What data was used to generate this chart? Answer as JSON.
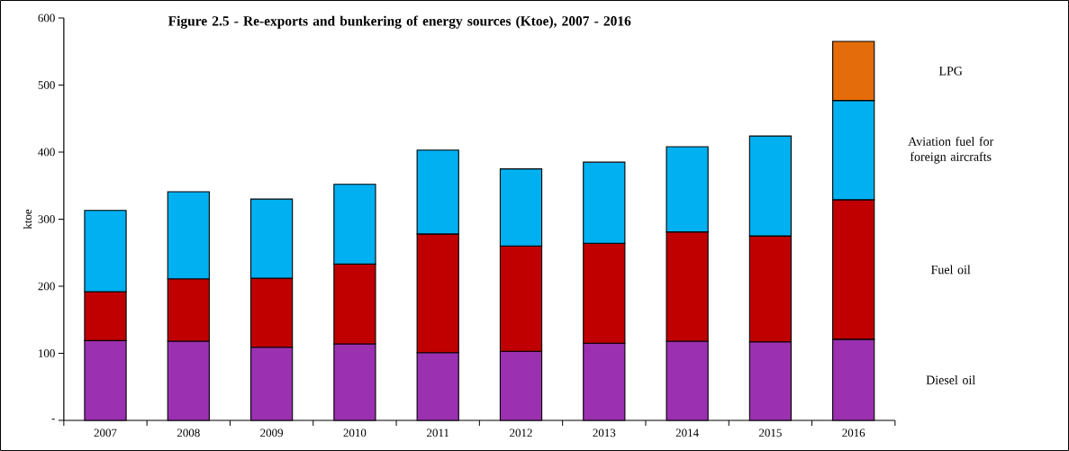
{
  "chart_data": {
    "type": "bar",
    "stacked": true,
    "title": "Figure 2.5 - Re-exports and bunkering of energy sources (Ktoe), 2007 - 2016",
    "ylabel": "ktoe",
    "categories": [
      "2007",
      "2008",
      "2009",
      "2010",
      "2011",
      "2012",
      "2013",
      "2014",
      "2015",
      "2016"
    ],
    "series": [
      {
        "name": "Diesel oil",
        "color": "#9b30b0",
        "values": [
          119,
          118,
          109,
          114,
          101,
          103,
          115,
          118,
          117,
          121
        ]
      },
      {
        "name": "Fuel oil",
        "color": "#c00000",
        "values": [
          73,
          93,
          103,
          119,
          177,
          157,
          149,
          163,
          158,
          208
        ]
      },
      {
        "name": "Aviation fuel for foreign aircrafts",
        "color": "#00b0f0",
        "values": [
          121,
          130,
          118,
          119,
          125,
          115,
          121,
          127,
          149,
          148
        ]
      },
      {
        "name": "LPG",
        "color": "#e46c0a",
        "values": [
          null,
          null,
          null,
          null,
          null,
          null,
          null,
          null,
          null,
          88
        ]
      }
    ],
    "ylim": [
      0,
      600
    ],
    "yticks": [
      {
        "value": 0,
        "label": "-"
      },
      100,
      200,
      300,
      400,
      500,
      600
    ],
    "grid": false
  }
}
